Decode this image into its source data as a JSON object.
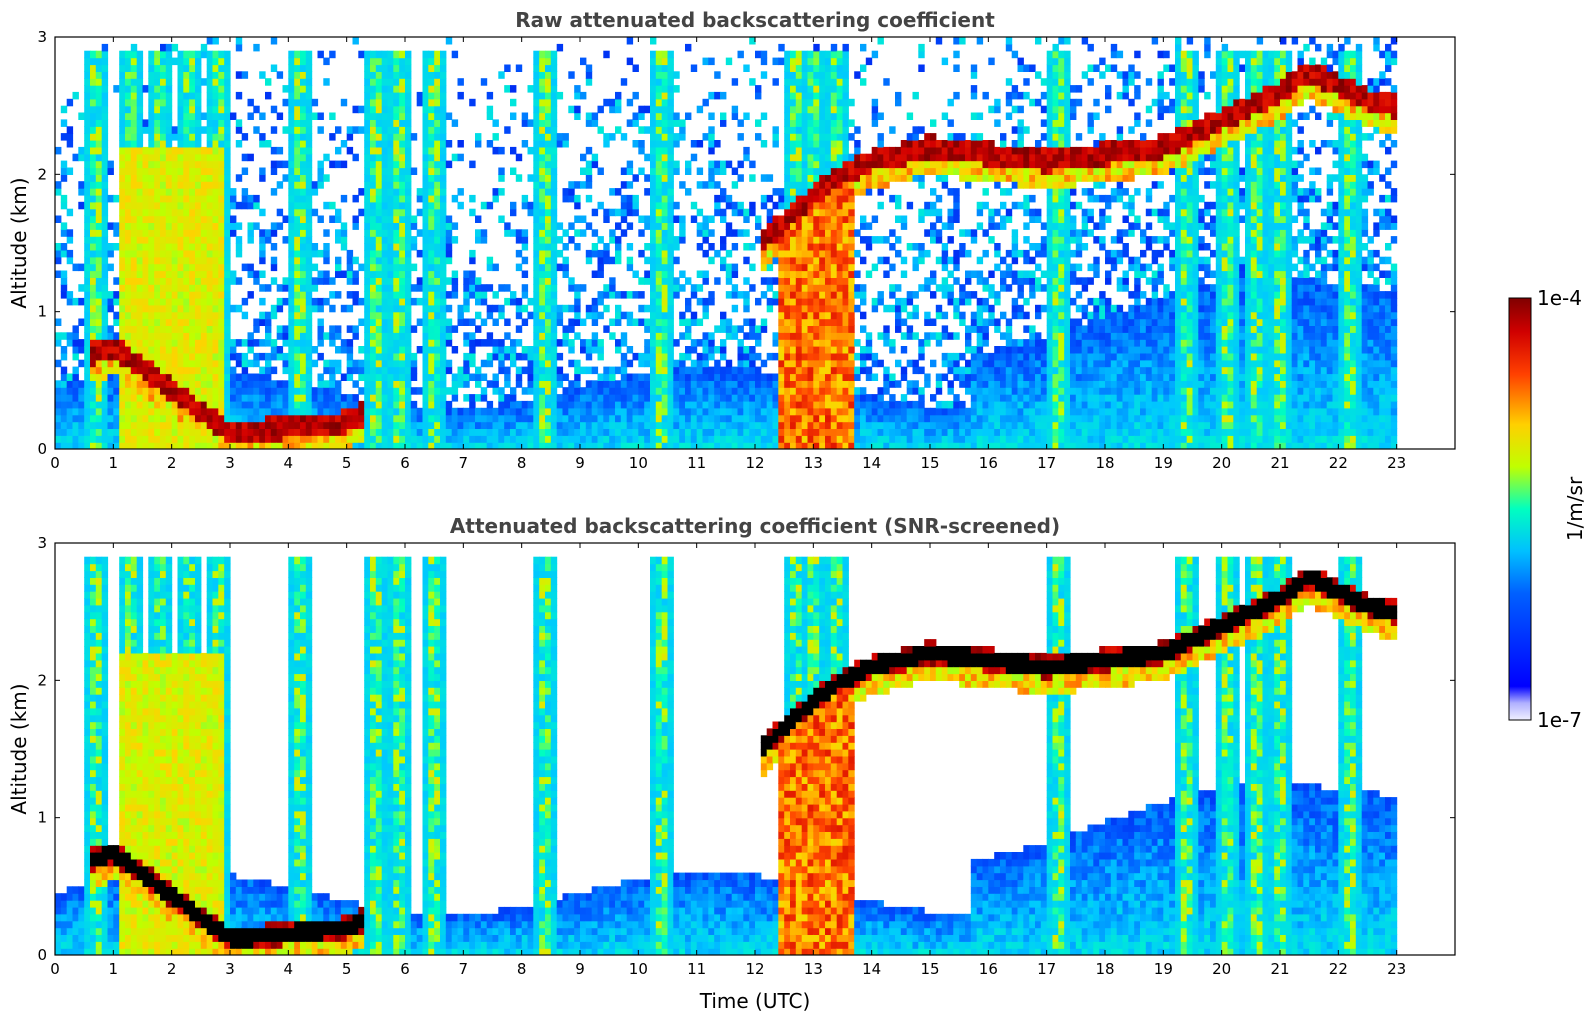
{
  "chart_data": [
    {
      "type": "heatmap",
      "title": "Raw attenuated backscattering coefficient",
      "xlabel": "",
      "ylabel": "Altitude (km)",
      "xlim": [
        0,
        24
      ],
      "ylim": [
        0,
        3
      ],
      "xticks": [
        "0",
        "1",
        "2",
        "3",
        "4",
        "5",
        "6",
        "7",
        "8",
        "9",
        "10",
        "11",
        "12",
        "13",
        "14",
        "15",
        "16",
        "17",
        "18",
        "19",
        "20",
        "21",
        "22",
        "23"
      ],
      "yticks": [
        "0",
        "1",
        "2",
        "3"
      ],
      "data_extent_x": [
        0,
        23
      ],
      "cloud_layer": {
        "x": [
          0.7,
          1.0,
          3.0,
          5.0,
          12.1,
          12.6,
          13.0,
          13.5,
          14.0,
          14.5,
          15.0,
          16.0,
          17.0,
          18.0,
          19.0,
          19.5,
          20.0,
          20.5,
          21.0,
          21.5,
          22.0,
          22.5,
          23.0
        ],
        "y": [
          0.7,
          0.75,
          0.12,
          0.2,
          1.5,
          1.7,
          1.85,
          2.0,
          2.1,
          2.15,
          2.2,
          2.15,
          2.1,
          2.15,
          2.2,
          2.3,
          2.4,
          2.5,
          2.6,
          2.75,
          2.65,
          2.55,
          2.5
        ]
      },
      "precip_columns_x": [
        0.7,
        1.3,
        1.8,
        2.3,
        2.8,
        4.2,
        5.5,
        5.9,
        6.5,
        8.4,
        10.4,
        12.7,
        13.0,
        13.4,
        17.2,
        19.4,
        20.1,
        20.6,
        21.0,
        22.2
      ]
    },
    {
      "type": "heatmap",
      "title": "Attenuated backscattering coefficient (SNR-screened)",
      "xlabel": "Time (UTC)",
      "ylabel": "Altitude (km)",
      "xlim": [
        0,
        24
      ],
      "ylim": [
        0,
        3
      ],
      "xticks": [
        "0",
        "1",
        "2",
        "3",
        "4",
        "5",
        "6",
        "7",
        "8",
        "9",
        "10",
        "11",
        "12",
        "13",
        "14",
        "15",
        "16",
        "17",
        "18",
        "19",
        "20",
        "21",
        "22",
        "23"
      ],
      "yticks": [
        "0",
        "1",
        "2",
        "3"
      ],
      "data_extent_x": [
        0,
        23
      ]
    }
  ],
  "colorbar": {
    "label": "1/m/sr",
    "max_label": "1e-4",
    "min_label": "1e-7",
    "colors": [
      "#f0f0ff",
      "#0000ff",
      "#00c0ff",
      "#00ffc0",
      "#c0ff00",
      "#ffd000",
      "#ff4000",
      "#800000"
    ]
  }
}
